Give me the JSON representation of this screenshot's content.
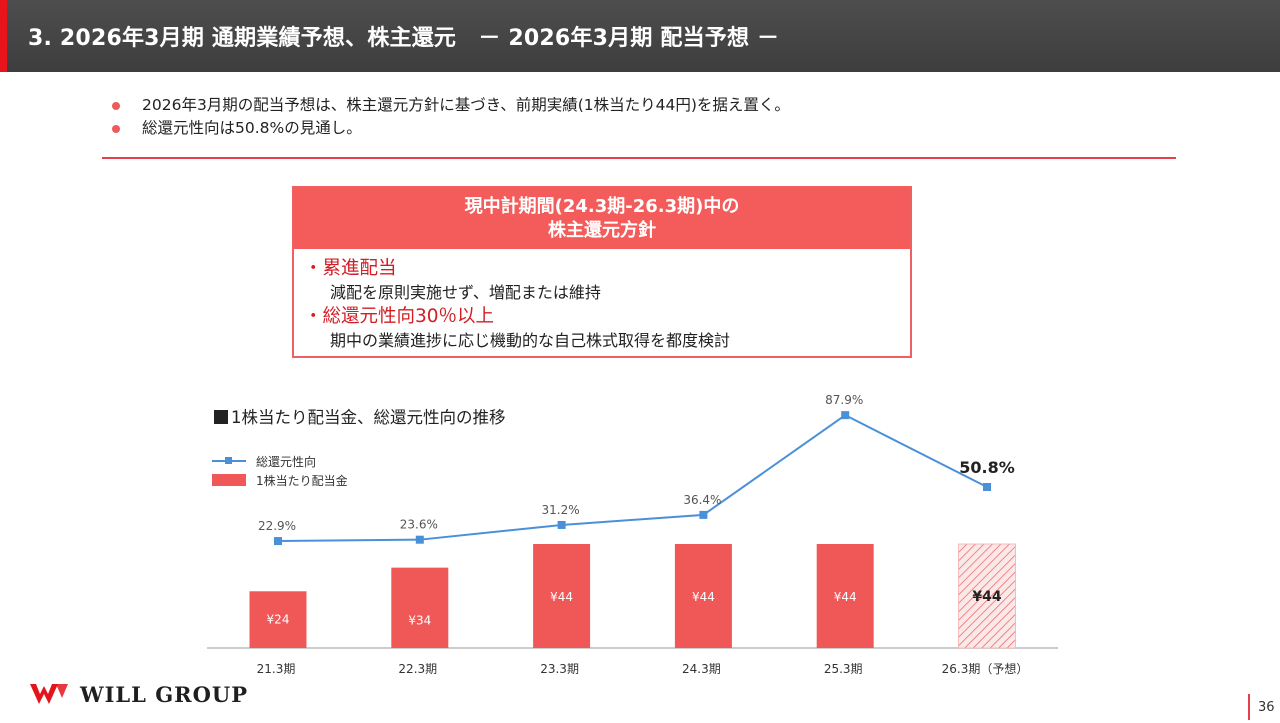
{
  "header": {
    "title": "3.  2026年3月期 通期業績予想、株主還元　－ 2026年3月期 配当予想 －"
  },
  "bullets": [
    "2026年3月期の配当予想は、株主還元方針に基づき、前期実績(1株当たり44円)を据え置く。",
    "総還元性向は50.8%の見通し。"
  ],
  "policy": {
    "title_line1": "現中計期間(24.3期-26.3期)中の",
    "title_line2": "株主還元方針",
    "items": [
      {
        "heading": "・累進配当",
        "detail": "減配を原則実施せず、増配または維持"
      },
      {
        "heading": "・総還元性向30％以上",
        "detail": "期中の業績進捗に応じ機動的な自己株式取得を都度検討"
      }
    ]
  },
  "chart_section_title": "1株当たり配当金、総還元性向の推移",
  "chart_data": {
    "type": "bar",
    "categories": [
      "21.3期",
      "22.3期",
      "23.3期",
      "24.3期",
      "25.3期",
      "26.3期（予想）"
    ],
    "series": [
      {
        "name": "1株当たり配当金",
        "kind": "bar",
        "values": [
          24,
          34,
          44,
          44,
          44,
          44
        ],
        "labels": [
          "¥24",
          "¥34",
          "¥44",
          "¥44",
          "¥44",
          "¥44"
        ],
        "forecast_flags": [
          false,
          false,
          false,
          false,
          false,
          true
        ]
      },
      {
        "name": "総還元性向",
        "kind": "line",
        "values": [
          22.9,
          23.6,
          31.2,
          36.4,
          87.9,
          50.8
        ],
        "labels": [
          "22.9%",
          "23.6%",
          "31.2%",
          "36.4%",
          "87.9%",
          "50.8%"
        ]
      }
    ],
    "legend": [
      "総還元性向",
      "1株当たり配当金"
    ],
    "legend_position": "top-left",
    "colors": {
      "bar": "#f05858",
      "line": "#4a90d9",
      "axis": "#bbbbbb"
    }
  },
  "footer": {
    "logo_text": "WILL GROUP",
    "page_number": "36"
  }
}
